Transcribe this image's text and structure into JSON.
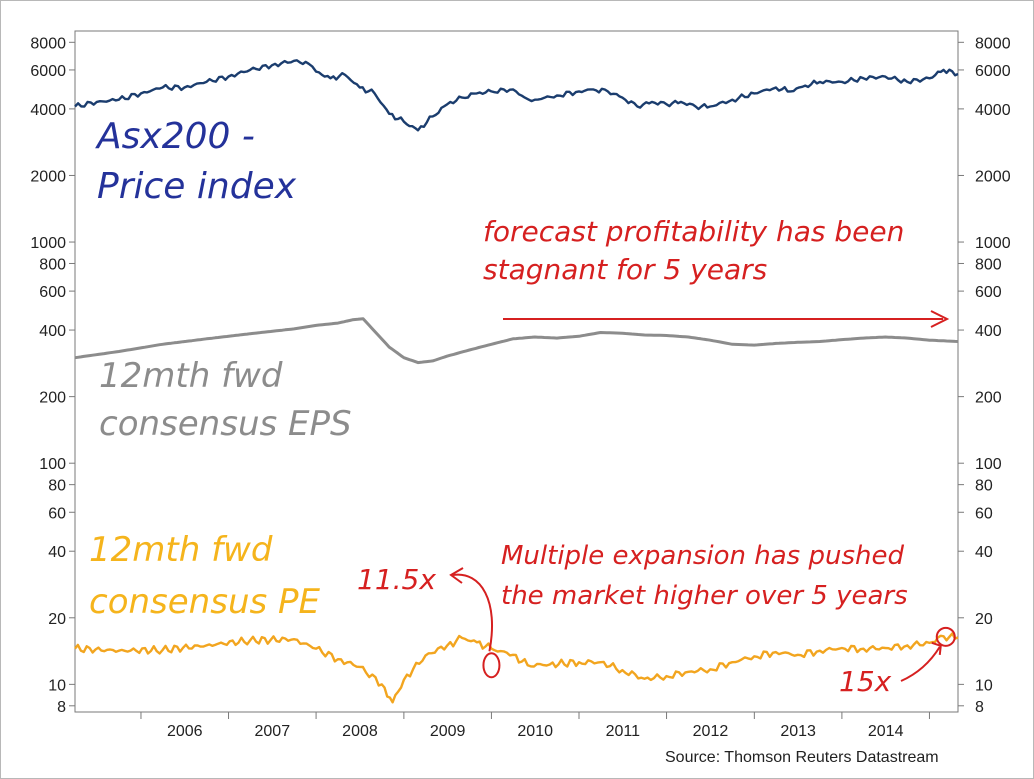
{
  "source_note": "Source: Thomson Reuters Datastream",
  "chart_data": {
    "type": "line",
    "title": "",
    "xlabel": "",
    "ylabel": "",
    "y_scale": "log",
    "ylim": [
      7.5,
      9000
    ],
    "xlim": [
      "2005-04-01",
      "2015-04-30"
    ],
    "grid": false,
    "x_tick_labels": [
      "2006",
      "2007",
      "2008",
      "2009",
      "2010",
      "2011",
      "2012",
      "2013",
      "2014"
    ],
    "y_tick_labels_left": [
      "8000",
      "6000",
      "4000",
      "2000",
      "1000",
      "800",
      "600",
      "400",
      "200",
      "100",
      "80",
      "60",
      "40",
      "20",
      "10",
      "8"
    ],
    "y_tick_labels_right": [
      "8000",
      "6000",
      "4000",
      "2000",
      "1000",
      "800",
      "600",
      "400",
      "200",
      "100",
      "80",
      "60",
      "40",
      "20",
      "10",
      "8"
    ],
    "series": [
      {
        "name": "ASX200 - Price index",
        "color": "#1b3d6e",
        "x": [
          "2005-04-01",
          "2005-07-01",
          "2005-10-01",
          "2006-01-01",
          "2006-04-01",
          "2006-07-01",
          "2006-10-01",
          "2007-01-01",
          "2007-04-01",
          "2007-07-01",
          "2007-10-01",
          "2007-12-01",
          "2008-01-01",
          "2008-03-01",
          "2008-05-01",
          "2008-07-01",
          "2008-09-01",
          "2008-11-01",
          "2009-01-01",
          "2009-03-01",
          "2009-05-01",
          "2009-07-01",
          "2009-09-01",
          "2009-11-01",
          "2010-01-01",
          "2010-04-01",
          "2010-05-20",
          "2010-07-01",
          "2010-10-01",
          "2011-01-01",
          "2011-03-01",
          "2011-05-01",
          "2011-07-01",
          "2011-09-01",
          "2011-11-01",
          "2012-01-01",
          "2012-03-01",
          "2012-05-01",
          "2012-07-01",
          "2012-10-01",
          "2013-01-01",
          "2013-04-01",
          "2013-06-01",
          "2013-08-01",
          "2013-10-01",
          "2014-01-01",
          "2014-04-01",
          "2014-07-01",
          "2014-10-01",
          "2015-01-01",
          "2015-03-01",
          "2015-04-30"
        ],
        "values": [
          4100,
          4300,
          4400,
          4700,
          5000,
          5000,
          5300,
          5600,
          6000,
          6300,
          6600,
          6400,
          5900,
          5500,
          5700,
          5000,
          4700,
          3800,
          3500,
          3200,
          3700,
          4200,
          4500,
          4700,
          4800,
          4900,
          4500,
          4400,
          4600,
          4800,
          4900,
          4800,
          4500,
          4100,
          4300,
          4200,
          4300,
          4100,
          4100,
          4400,
          4700,
          5000,
          4800,
          5100,
          5300,
          5300,
          5500,
          5600,
          5300,
          5500,
          6000,
          5750
        ]
      },
      {
        "name": "12mth fwd consensus EPS",
        "color": "#8c8c8c",
        "x": [
          "2005-04-01",
          "2005-10-01",
          "2006-04-01",
          "2006-10-01",
          "2007-04-01",
          "2007-10-01",
          "2008-01-01",
          "2008-04-01",
          "2008-06-01",
          "2008-07-15",
          "2008-09-01",
          "2008-11-01",
          "2009-01-01",
          "2009-03-01",
          "2009-05-01",
          "2009-07-01",
          "2009-10-01",
          "2010-01-01",
          "2010-04-01",
          "2010-07-01",
          "2010-10-01",
          "2011-01-01",
          "2011-04-01",
          "2011-07-01",
          "2011-10-01",
          "2012-01-01",
          "2012-04-01",
          "2012-07-01",
          "2012-10-01",
          "2013-01-01",
          "2013-04-01",
          "2013-07-01",
          "2013-10-01",
          "2014-01-01",
          "2014-04-01",
          "2014-07-01",
          "2014-10-01",
          "2015-01-01",
          "2015-04-30"
        ],
        "values": [
          300,
          320,
          345,
          365,
          385,
          405,
          420,
          430,
          445,
          450,
          395,
          335,
          300,
          285,
          290,
          305,
          325,
          345,
          365,
          372,
          368,
          375,
          390,
          387,
          380,
          378,
          372,
          360,
          345,
          342,
          348,
          352,
          355,
          362,
          368,
          372,
          368,
          360,
          355
        ]
      },
      {
        "name": "12mth fwd consensus PE",
        "color": "#f2a51f",
        "x": [
          "2005-04-01",
          "2005-10-01",
          "2006-04-01",
          "2006-10-01",
          "2007-04-01",
          "2007-10-01",
          "2008-01-01",
          "2008-04-01",
          "2008-07-01",
          "2008-10-01",
          "2008-11-15",
          "2009-01-01",
          "2009-04-01",
          "2009-07-01",
          "2009-09-01",
          "2009-11-01",
          "2010-01-01",
          "2010-04-01",
          "2010-06-01",
          "2010-09-01",
          "2011-01-01",
          "2011-04-01",
          "2011-07-01",
          "2011-10-01",
          "2012-01-01",
          "2012-04-01",
          "2012-07-01",
          "2012-10-01",
          "2013-01-01",
          "2013-04-01",
          "2013-07-01",
          "2013-10-01",
          "2014-01-01",
          "2014-04-01",
          "2014-07-01",
          "2014-10-01",
          "2015-01-01",
          "2015-03-01",
          "2015-04-30"
        ],
        "values": [
          14.5,
          14.2,
          14.3,
          15.0,
          15.8,
          16.0,
          14.5,
          13.0,
          12.0,
          10.0,
          8.3,
          10.5,
          13.5,
          15.0,
          16.2,
          15.5,
          14.5,
          13.6,
          12.2,
          12.3,
          12.6,
          12.6,
          11.6,
          10.6,
          10.9,
          11.4,
          11.7,
          12.6,
          13.4,
          14.0,
          13.6,
          14.2,
          14.6,
          14.5,
          14.6,
          15.0,
          15.4,
          16.5,
          16.3
        ]
      }
    ],
    "annotations": [
      {
        "name": "asx-label",
        "lines": [
          "Asx200 -",
          "Price index"
        ],
        "color": "#24329a"
      },
      {
        "name": "eps-label",
        "lines": [
          "12mth fwd",
          "consensus EPS"
        ],
        "color": "#8c8c8c"
      },
      {
        "name": "pe-label",
        "lines": [
          "12mth fwd",
          "consensus PE"
        ],
        "color": "#f5b41c"
      },
      {
        "name": "profitability-note",
        "lines": [
          "forecast profitability has been",
          "stagnant for 5 years"
        ],
        "color": "#d62020"
      },
      {
        "name": "multiple-note",
        "lines": [
          "Multiple expansion has pushed",
          "the market higher over 5 years"
        ],
        "color": "#d62020"
      },
      {
        "name": "pe-start-label",
        "lines": [
          "11.5x"
        ],
        "color": "#d62020"
      },
      {
        "name": "pe-end-label",
        "lines": [
          "15x"
        ],
        "color": "#d62020"
      }
    ]
  }
}
